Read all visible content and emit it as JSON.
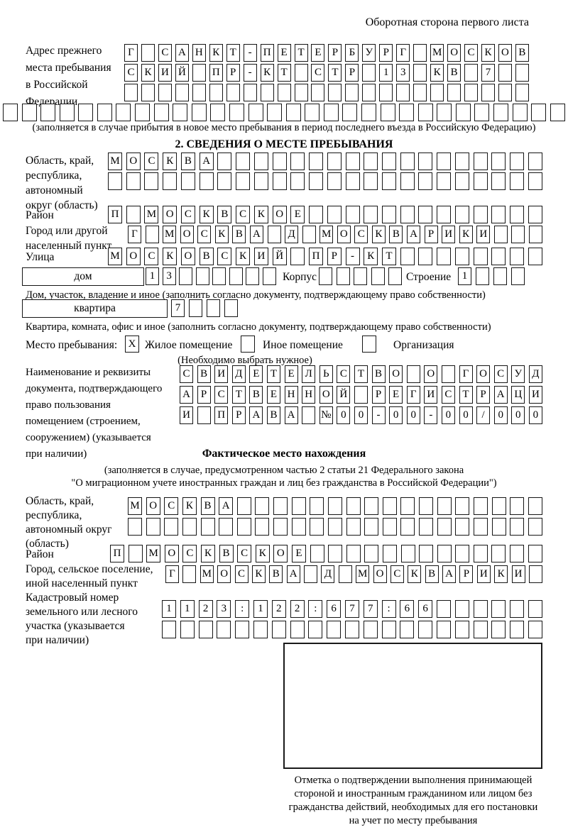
{
  "page": {
    "header_note": "Оборотная сторона первого листа"
  },
  "section1": {
    "label": "Адрес прежнего\nместа пребывания\nв Российской\nФедерации",
    "rows": {
      "r1": {
        "text": "Г САНКТ-ПЕТЕРБУРГ МОСКОВ",
        "count": 24
      },
      "r2": {
        "text": "СКИЙ ПР-КТ СТР 13 КВ 7",
        "count": 24
      },
      "r3": {
        "text": "",
        "count": 24
      },
      "r4": {
        "text": "",
        "count": 30
      }
    },
    "note": "(заполняется в случае прибытия в новое место пребывания в период последнего въезда в Российскую Федерацию)"
  },
  "section2": {
    "title": "2. СВЕДЕНИЯ О МЕСТЕ ПРЕБЫВАНИЯ",
    "oblast": {
      "label": "Область, край,\nреспублика,\nавтономный\nокруг (область)",
      "rows": {
        "r1": {
          "text": "МОСКВА",
          "count": 24
        },
        "r2": {
          "text": "",
          "count": 24
        }
      }
    },
    "rayon": {
      "label": "Район",
      "row": {
        "text": "П МОСКВСКОЕ",
        "count": 24
      }
    },
    "gorod": {
      "label": "Город или другой\nнаселенный пункт",
      "row": {
        "text": "Г МОСКВА Д МОСКВАРИКИ",
        "count": 24
      }
    },
    "ulitsa": {
      "label": "Улица",
      "row": {
        "text": "МОСКОВСКИЙ ПР-КТ",
        "count": 24
      }
    },
    "dom": {
      "box_label": "дом",
      "cells": {
        "text": "13",
        "count": 8
      },
      "korpus_label": "Корпус",
      "korpus_cells": {
        "text": "",
        "count": 5
      },
      "stroenie_label": "Строение",
      "stroenie_cells": {
        "text": "1",
        "count": 4
      }
    },
    "note_dom": "Дом, участок, владение и иное (заполнить согласно документу, подтверждающему право собственности)",
    "kvartira": {
      "box_label": "квартира",
      "cells": {
        "text": "7",
        "count": 4
      }
    },
    "note_kvartira": "Квартира, комната, офис и иное (заполнить согласно документу, подтверждающему право собственности)",
    "mesto": {
      "label": "Место пребывания:",
      "options": [
        {
          "label": "Жилое помещение",
          "checked": "X"
        },
        {
          "label": "Иное помещение",
          "checked": ""
        },
        {
          "label": "Организация",
          "checked": ""
        }
      ],
      "note": "(Необходимо выбрать нужное)"
    },
    "document": {
      "label": "Наименование и реквизиты\nдокумента, подтверждающего\nправо пользования\nпомещением (строением,\nсооружением) (указывается\nпри наличии)",
      "rows": {
        "r1": {
          "text": "СВИДЕТЕЛЬСТВО О ГОСУД",
          "count": 21
        },
        "r2": {
          "text": "АРСТВЕННОЙ РЕГИСТРАЦИ",
          "count": 21
        },
        "r3": {
          "text": "И ПРАВА №00-00-00/000",
          "count": 21
        }
      }
    }
  },
  "section3": {
    "title": "Фактическое место нахождения",
    "subtitle1": "(заполняется в случае, предусмотренном частью 2 статьи 21 Федерального закона",
    "subtitle2": "\"О миграционном учете иностранных граждан и лиц без гражданства в Российской Федерации\")",
    "oblast": {
      "label": "Область, край,\nреспублика,\nавтономный округ\n(область)",
      "rows": {
        "r1": {
          "text": "МОСКВА",
          "count": 23
        },
        "r2": {
          "text": "",
          "count": 23
        }
      }
    },
    "rayon": {
      "label": "Район",
      "row": {
        "text": "П МОСКВСКОЕ",
        "count": 24
      }
    },
    "gorod": {
      "label": "Город, сельское поселение,\nиной населенный пункт",
      "row": {
        "text": "Г МОСКВА Д МОСКВАРИКИ",
        "count": 22
      }
    },
    "kadastr": {
      "label": "Кадастровый номер\nземельного или лесного\nучастка (указывается\nпри наличии)",
      "rows": {
        "r1": {
          "text": "1123:122:677:66",
          "count": 21
        },
        "r2": {
          "text": "",
          "count": 21
        }
      }
    },
    "stamp_caption": "Отметка о подтверждении выполнения принимающей\nстороной и иностранным гражданином или лицом без\nгражданства действий, необходимых для его постановки\nна учет по месту пребывания"
  }
}
